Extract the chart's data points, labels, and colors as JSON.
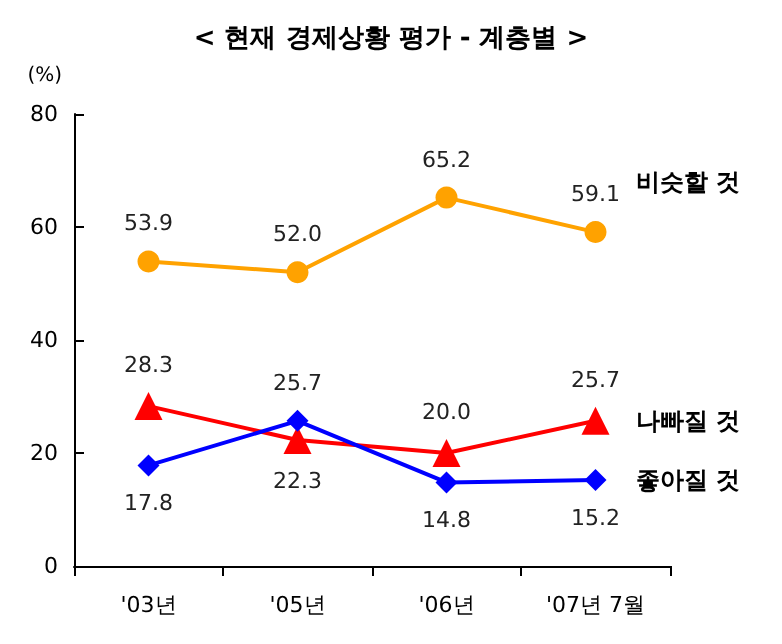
{
  "chart_data": {
    "type": "line",
    "title": "< 현재 경제상황 평가 - 계층별 >",
    "ylabel": "(%)",
    "categories": [
      "'03년",
      "'05년",
      "'06년",
      "'07년 7월"
    ],
    "series": [
      {
        "name": "비슷할 것",
        "color": "#ffa200",
        "marker": "circle",
        "values": [
          53.9,
          52.0,
          65.2,
          59.1
        ],
        "value_labels": [
          "53.9",
          "52.0",
          "65.2",
          "59.1"
        ]
      },
      {
        "name": "나빠질 것",
        "color": "#ff0000",
        "marker": "triangle",
        "values": [
          28.3,
          22.3,
          20.0,
          25.7
        ],
        "value_labels": [
          "28.3",
          "22.3",
          "20.0",
          "25.7"
        ]
      },
      {
        "name": "좋아질 것",
        "color": "#0000ff",
        "marker": "diamond",
        "values": [
          17.8,
          25.7,
          14.8,
          15.2
        ],
        "value_labels": [
          "17.8",
          "25.7",
          "14.8",
          "15.2"
        ]
      }
    ],
    "ylim": [
      0,
      80
    ],
    "yticks": [
      0,
      20,
      40,
      60,
      80
    ],
    "grid": false,
    "legend": false
  }
}
